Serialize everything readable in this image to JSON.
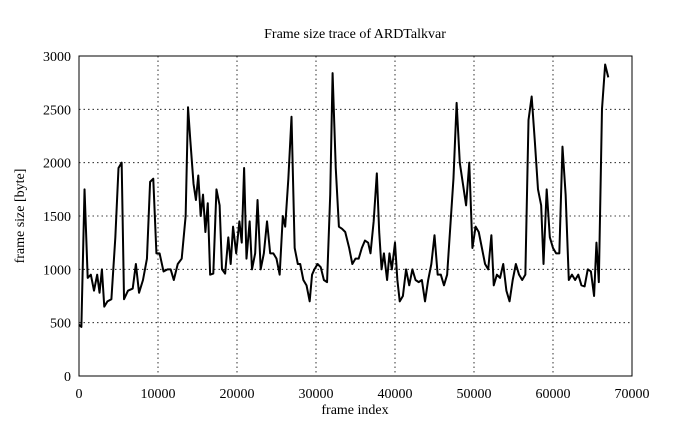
{
  "chart_data": {
    "type": "line",
    "title": "Frame size trace of ARDTalkvar",
    "x_label": "frame index",
    "y_label": "frame size [byte]",
    "xlim": [
      0,
      70000
    ],
    "xticks": [
      0,
      10000,
      20000,
      30000,
      40000,
      50000,
      60000,
      70000
    ],
    "ylim": [
      0,
      3000
    ],
    "yticks": [
      0,
      500,
      1000,
      1500,
      2000,
      2500,
      3000
    ],
    "grid": true,
    "series": [
      {
        "color": "#000000",
        "x": [
          0,
          300,
          700,
          1100,
          1500,
          1900,
          2300,
          2600,
          2900,
          3200,
          3600,
          4100,
          4600,
          5000,
          5400,
          5700,
          6200,
          6800,
          7200,
          7600,
          8100,
          8600,
          9000,
          9400,
          9800,
          10200,
          10700,
          11200,
          11600,
          12000,
          12500,
          13000,
          13500,
          13800,
          14100,
          14500,
          14800,
          15100,
          15400,
          15700,
          16000,
          16300,
          16600,
          17000,
          17400,
          17800,
          18100,
          18500,
          18900,
          19200,
          19500,
          19900,
          20300,
          20600,
          20900,
          21200,
          21600,
          21900,
          22300,
          22600,
          23000,
          23400,
          23800,
          24200,
          24600,
          25000,
          25400,
          25800,
          26100,
          26500,
          26900,
          27300,
          27700,
          28000,
          28400,
          28800,
          29200,
          29500,
          29800,
          30200,
          30600,
          31000,
          31400,
          31800,
          32100,
          32500,
          32900,
          33300,
          33700,
          34200,
          34600,
          35000,
          35400,
          35800,
          36200,
          36600,
          36900,
          37300,
          37700,
          38000,
          38300,
          38600,
          39000,
          39300,
          39600,
          40000,
          40300,
          40600,
          41000,
          41400,
          41800,
          42200,
          42600,
          43000,
          43400,
          43800,
          44200,
          44600,
          45000,
          45400,
          45800,
          46200,
          46600,
          47000,
          47400,
          47800,
          48200,
          48600,
          49000,
          49400,
          49800,
          50200,
          50600,
          51000,
          51400,
          51800,
          52200,
          52500,
          52900,
          53300,
          53700,
          54100,
          54500,
          54900,
          55300,
          55700,
          56100,
          56500,
          56900,
          57300,
          57700,
          58100,
          58500,
          58800,
          59200,
          59600,
          60000,
          60400,
          60800,
          61200,
          61600,
          62000,
          62400,
          62800,
          63200,
          63600,
          64000,
          64400,
          64800,
          65200,
          65500,
          65800,
          66200,
          66600,
          67000
        ],
        "values": [
          480,
          460,
          1750,
          920,
          950,
          800,
          950,
          780,
          1000,
          650,
          700,
          720,
          1300,
          1950,
          2000,
          720,
          800,
          820,
          1050,
          780,
          900,
          1100,
          1820,
          1850,
          1150,
          1150,
          980,
          1000,
          1000,
          900,
          1050,
          1100,
          1500,
          2520,
          2200,
          1800,
          1650,
          1880,
          1500,
          1700,
          1350,
          1620,
          950,
          960,
          1750,
          1600,
          1000,
          960,
          1300,
          1050,
          1400,
          1150,
          1450,
          1250,
          1950,
          1100,
          1450,
          1000,
          1150,
          1650,
          1000,
          1150,
          1450,
          1150,
          1150,
          1100,
          950,
          1500,
          1400,
          1850,
          2430,
          1200,
          1050,
          1050,
          900,
          850,
          700,
          950,
          1000,
          1050,
          1020,
          900,
          880,
          1700,
          2840,
          1950,
          1400,
          1380,
          1350,
          1200,
          1050,
          1100,
          1100,
          1200,
          1270,
          1250,
          1150,
          1450,
          1900,
          1350,
          1000,
          1150,
          900,
          1150,
          1000,
          1250,
          900,
          700,
          750,
          1000,
          850,
          1000,
          900,
          880,
          900,
          700,
          900,
          1050,
          1320,
          950,
          950,
          850,
          950,
          1400,
          1850,
          2560,
          2000,
          1800,
          1600,
          2000,
          1200,
          1400,
          1350,
          1200,
          1050,
          1000,
          1320,
          850,
          950,
          920,
          1050,
          800,
          700,
          900,
          1050,
          950,
          900,
          950,
          2400,
          2620,
          2200,
          1750,
          1600,
          1050,
          1750,
          1300,
          1200,
          1150,
          1150,
          2150,
          1700,
          900,
          950,
          900,
          950,
          850,
          840,
          1000,
          980,
          750,
          1250,
          880,
          2500,
          2920,
          2800
        ]
      }
    ]
  }
}
